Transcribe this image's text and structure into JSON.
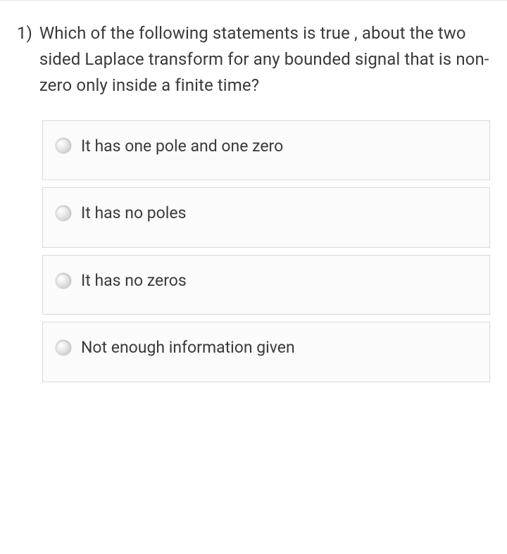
{
  "question": {
    "number": "1)",
    "text": "Which of the following statements is true , about the two sided Laplace transform for any bounded signal that is non-zero only inside a finite time?"
  },
  "options": [
    {
      "label": "It has one pole and one zero"
    },
    {
      "label": "It has no poles"
    },
    {
      "label": "It has no zeros"
    },
    {
      "label": "Not enough information given"
    }
  ],
  "styling": {
    "background_color": "#ffffff",
    "text_color": "#3a3a3a",
    "option_border_color": "#d9d9d9",
    "option_background": "#fbfbfb",
    "question_fontsize": 24,
    "option_fontsize": 23
  }
}
